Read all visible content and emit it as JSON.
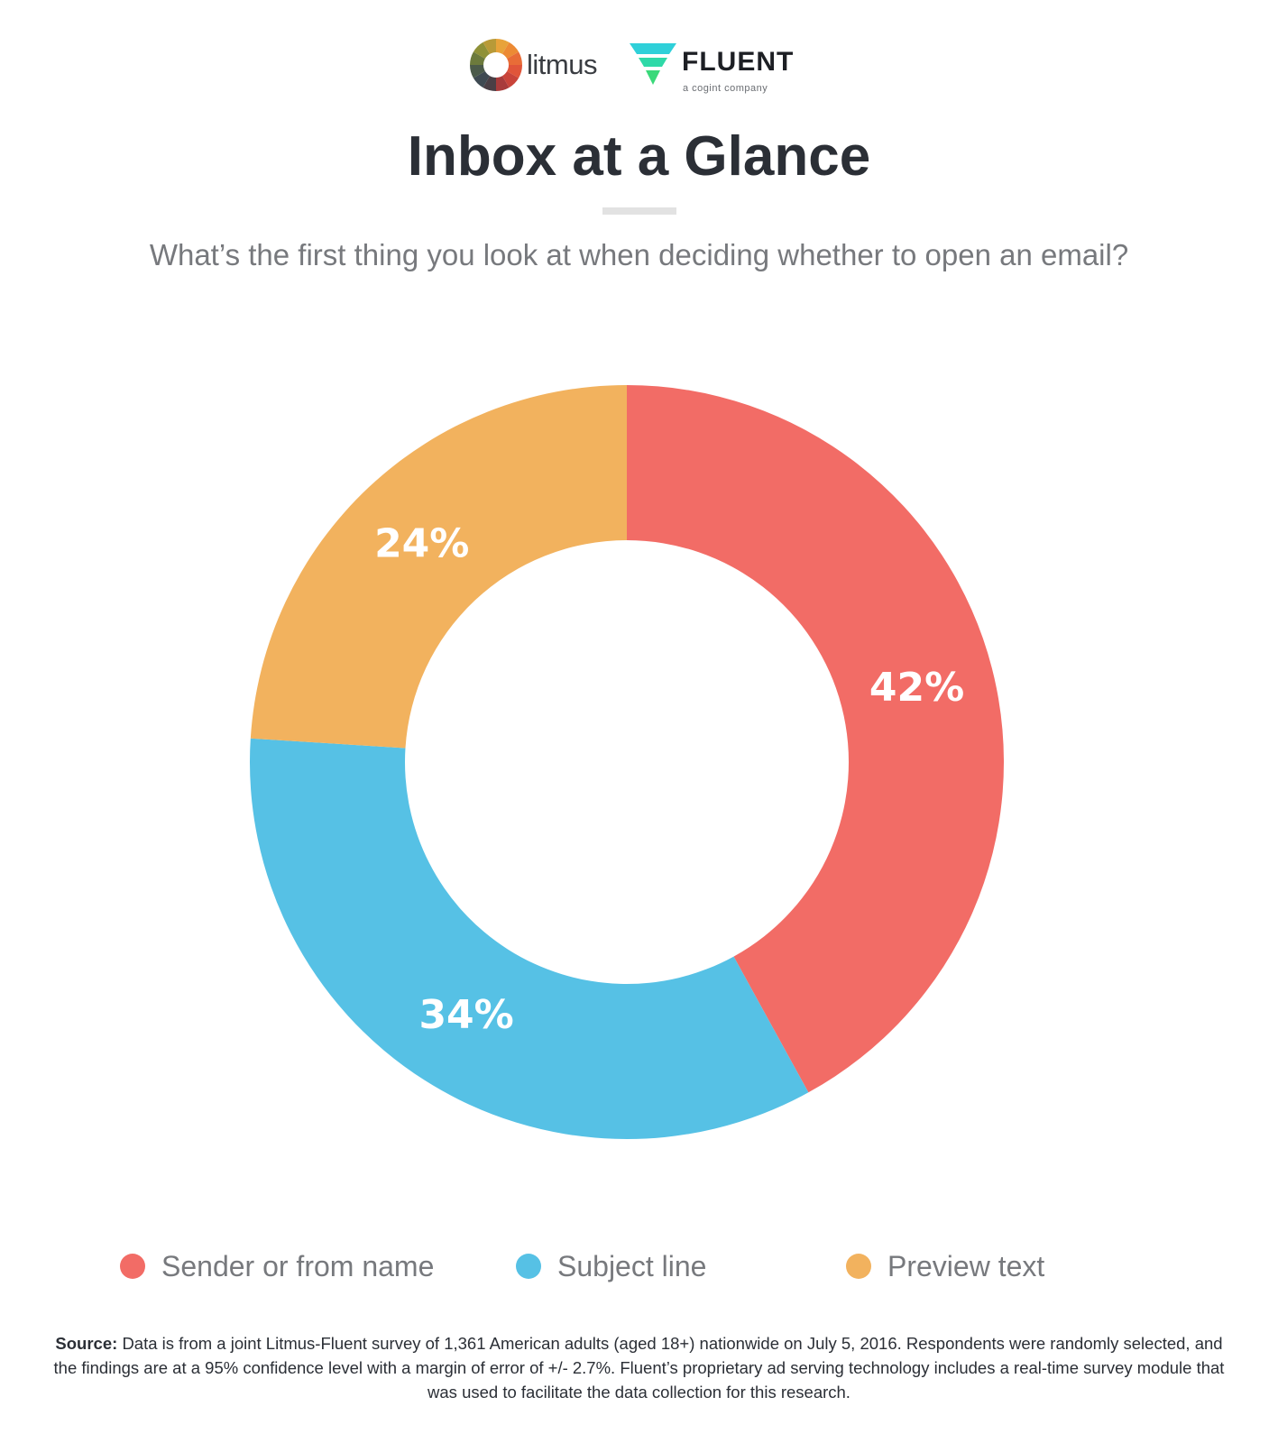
{
  "logos": {
    "litmus": {
      "name": "litmus",
      "icon": "litmus-wheel-icon"
    },
    "fluent": {
      "name": "FLUENT",
      "tagline": "a cogint company",
      "icon": "fluent-triangle-icon"
    }
  },
  "title": "Inbox at a Glance",
  "subtitle": "What’s the first thing you look at when deciding whether to open an email?",
  "chart_data": {
    "type": "pie",
    "variant": "donut",
    "slices": [
      {
        "label": "Sender or from name",
        "value": 42,
        "display": "42%",
        "color": "#f26c66"
      },
      {
        "label": "Subject line",
        "value": 34,
        "display": "34%",
        "color": "#56c1e5"
      },
      {
        "label": "Preview text",
        "value": 24,
        "display": "24%",
        "color": "#f2b25e"
      }
    ],
    "legend_position": "bottom"
  },
  "source": {
    "label": "Source:",
    "text": "Data is from a joint Litmus-Fluent survey of 1,361 American adults (aged 18+) nationwide on July 5, 2016. Respondents were randomly selected, and the findings are at a 95% confidence level with a margin of error of +/- 2.7%. Fluent’s proprietary ad serving technology includes a real-time survey module that was used to facilitate the data collection for this research."
  }
}
